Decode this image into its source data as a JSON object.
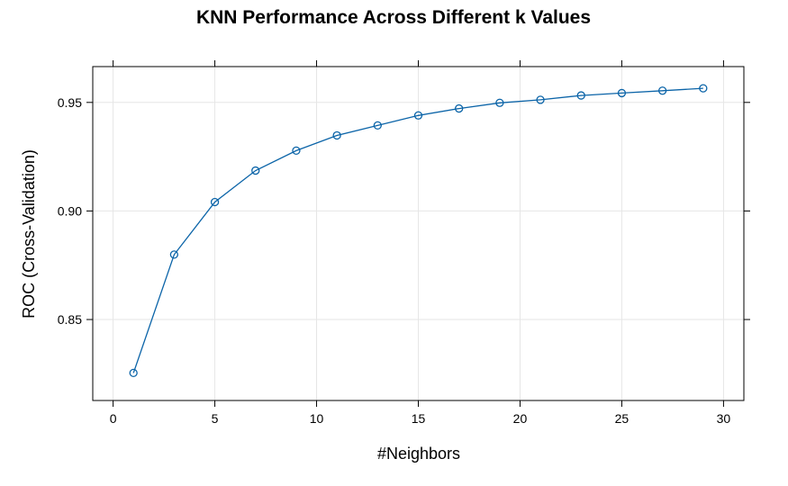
{
  "chart_data": {
    "type": "line",
    "title": "KNN Performance Across Different k Values",
    "xlabel": "#Neighbors",
    "ylabel": "ROC (Cross-Validation)",
    "xlim": [
      -1,
      31
    ],
    "ylim": [
      0.8127,
      0.9665
    ],
    "xticks": [
      0,
      5,
      10,
      15,
      20,
      25,
      30
    ],
    "yticks": [
      0.85,
      0.9,
      0.95
    ],
    "ytick_labels": [
      "0.85",
      "0.90",
      "0.95"
    ],
    "grid": true,
    "color": "#0b64a8",
    "x": [
      1,
      3,
      5,
      7,
      9,
      11,
      13,
      15,
      17,
      19,
      21,
      23,
      25,
      27,
      29
    ],
    "y": [
      0.8254,
      0.8799,
      0.9041,
      0.9186,
      0.9278,
      0.9348,
      0.9394,
      0.944,
      0.9472,
      0.9498,
      0.9512,
      0.9532,
      0.9543,
      0.9554,
      0.9565
    ]
  }
}
